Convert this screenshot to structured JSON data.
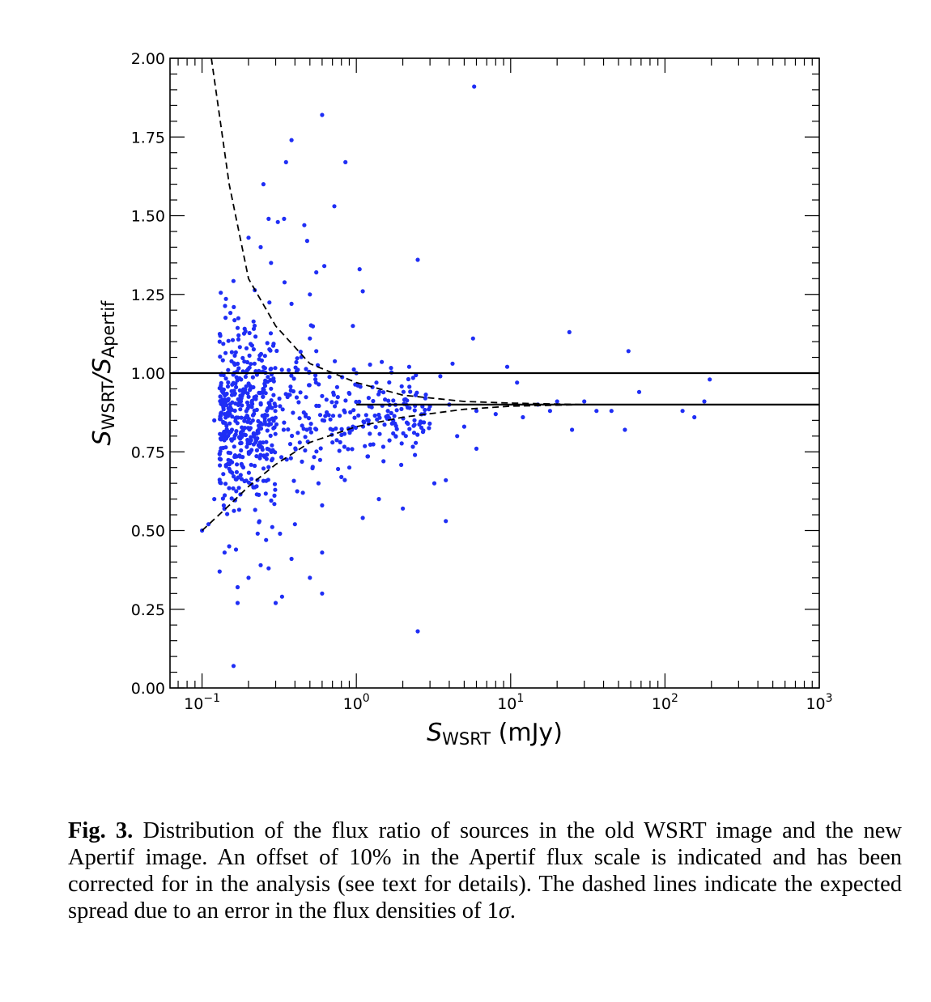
{
  "chart_data": {
    "type": "scatter",
    "xscale": "log",
    "xlim": [
      0.062,
      1000
    ],
    "ylim": [
      0.0,
      2.0
    ],
    "xlabel": {
      "main": "S",
      "sub": "WSRT",
      "unit": " (mJy)"
    },
    "ylabel": {
      "main": "S",
      "sub": "WSRT",
      "sep": "/S",
      "sub2": "Apertif"
    },
    "yticks": [
      "0.00",
      "0.25",
      "0.50",
      "0.75",
      "1.00",
      "1.25",
      "1.50",
      "1.75",
      "2.00"
    ],
    "xticks": [
      {
        "base": "10",
        "exp": "−1",
        "value": 0.1
      },
      {
        "base": "10",
        "exp": "0",
        "value": 1
      },
      {
        "base": "10",
        "exp": "1",
        "value": 10
      },
      {
        "base": "10",
        "exp": "2",
        "value": 100
      },
      {
        "base": "10",
        "exp": "3",
        "value": 1000
      }
    ],
    "reference_lines": [
      {
        "name": "unity-line",
        "y": 1.0,
        "style": "solid"
      },
      {
        "name": "offset-line",
        "y": 0.9,
        "style": "solid",
        "x_from": 1.0
      }
    ],
    "spread_curves": {
      "upper": [
        [
          0.115,
          2.0
        ],
        [
          0.15,
          1.6
        ],
        [
          0.2,
          1.3
        ],
        [
          0.3,
          1.15
        ],
        [
          0.5,
          1.03
        ],
        [
          1.0,
          0.97
        ],
        [
          2.0,
          0.93
        ],
        [
          5.0,
          0.91
        ],
        [
          10,
          0.905
        ],
        [
          30,
          0.9
        ],
        [
          1000,
          0.9
        ]
      ],
      "lower": [
        [
          0.1,
          0.5
        ],
        [
          0.15,
          0.58
        ],
        [
          0.2,
          0.64
        ],
        [
          0.3,
          0.71
        ],
        [
          0.5,
          0.78
        ],
        [
          1.0,
          0.83
        ],
        [
          2.0,
          0.86
        ],
        [
          5.0,
          0.885
        ],
        [
          10,
          0.895
        ],
        [
          30,
          0.9
        ],
        [
          1000,
          0.9
        ]
      ]
    },
    "marker_color": "#1f2ef5",
    "points": [
      [
        0.6,
        1.82
      ],
      [
        5.8,
        1.91
      ],
      [
        0.85,
        1.67
      ],
      [
        0.38,
        1.74
      ],
      [
        0.35,
        1.67
      ],
      [
        0.25,
        1.6
      ],
      [
        0.72,
        1.53
      ],
      [
        0.27,
        1.49
      ],
      [
        0.31,
        1.48
      ],
      [
        0.34,
        1.49
      ],
      [
        0.46,
        1.47
      ],
      [
        0.48,
        1.42
      ],
      [
        0.2,
        1.43
      ],
      [
        0.24,
        1.4
      ],
      [
        2.5,
        1.36
      ],
      [
        1.05,
        1.33
      ],
      [
        0.62,
        1.34
      ],
      [
        0.55,
        1.32
      ],
      [
        0.28,
        1.35
      ],
      [
        1.1,
        1.26
      ],
      [
        0.5,
        1.25
      ],
      [
        0.38,
        1.22
      ],
      [
        0.95,
        1.15
      ],
      [
        0.5,
        1.11
      ],
      [
        0.55,
        1.07
      ],
      [
        5.7,
        1.11
      ],
      [
        24,
        1.13
      ],
      [
        58,
        1.07
      ],
      [
        2.2,
        1.02
      ],
      [
        4.2,
        1.03
      ],
      [
        9.5,
        1.02
      ],
      [
        1.0,
        1.0
      ],
      [
        1.35,
        0.97
      ],
      [
        3.5,
        0.99
      ],
      [
        11,
        0.97
      ],
      [
        68,
        0.94
      ],
      [
        195,
        0.98
      ],
      [
        180,
        0.91
      ],
      [
        155,
        0.86
      ],
      [
        130,
        0.88
      ],
      [
        55,
        0.82
      ],
      [
        45,
        0.88
      ],
      [
        36,
        0.88
      ],
      [
        30,
        0.91
      ],
      [
        25,
        0.82
      ],
      [
        2.4,
        0.74
      ],
      [
        1.5,
        0.72
      ],
      [
        3.8,
        0.66
      ],
      [
        3.2,
        0.65
      ],
      [
        1.4,
        0.6
      ],
      [
        1.1,
        0.54
      ],
      [
        2.0,
        0.57
      ],
      [
        3.8,
        0.53
      ],
      [
        0.6,
        0.43
      ],
      [
        0.5,
        0.35
      ],
      [
        0.6,
        0.3
      ],
      [
        0.38,
        0.41
      ],
      [
        0.33,
        0.29
      ],
      [
        0.3,
        0.27
      ],
      [
        0.24,
        0.39
      ],
      [
        0.27,
        0.38
      ],
      [
        0.2,
        0.35
      ],
      [
        0.17,
        0.32
      ],
      [
        0.17,
        0.27
      ],
      [
        0.16,
        0.07
      ],
      [
        2.5,
        0.18
      ],
      [
        0.15,
        0.45
      ],
      [
        0.13,
        0.37
      ],
      [
        0.14,
        0.43
      ],
      [
        0.12,
        0.6
      ],
      [
        0.11,
        0.52
      ],
      [
        0.1,
        0.5
      ],
      [
        0.12,
        0.85
      ],
      [
        0.13,
        1.1
      ],
      [
        0.45,
        0.62
      ],
      [
        0.8,
        0.67
      ],
      [
        0.9,
        0.7
      ],
      [
        0.7,
        0.78
      ],
      [
        0.95,
        0.83
      ],
      [
        1.2,
        0.85
      ],
      [
        1.6,
        0.88
      ],
      [
        2.1,
        0.9
      ],
      [
        2.8,
        0.92
      ],
      [
        4.0,
        0.9
      ],
      [
        6.0,
        0.88
      ],
      [
        8.0,
        0.87
      ],
      [
        12,
        0.86
      ],
      [
        15,
        0.9
      ],
      [
        18,
        0.88
      ],
      [
        20,
        0.91
      ],
      [
        5.0,
        0.83
      ],
      [
        4.5,
        0.8
      ],
      [
        6.0,
        0.76
      ],
      [
        1.8,
        0.8
      ],
      [
        0.6,
        0.58
      ],
      [
        0.4,
        0.52
      ],
      [
        0.32,
        0.49
      ],
      [
        0.26,
        0.47
      ]
    ],
    "cloud": {
      "x_min": 0.13,
      "x_max": 0.3,
      "y_mean": 0.86,
      "y_sd": 0.14,
      "count": 460,
      "seed": 7
    }
  },
  "caption": {
    "label": "Fig. 3.",
    "text": " Distribution of the flux ratio of sources in the old WSRT image and the new Apertif image. An offset of 10% in the Apertif flux scale is indicated and has been corrected for in the analysis (see text for details). The dashed lines indicate the expected spread due to an error in the flux densities of 1",
    "sigma": "σ",
    "end": "."
  }
}
